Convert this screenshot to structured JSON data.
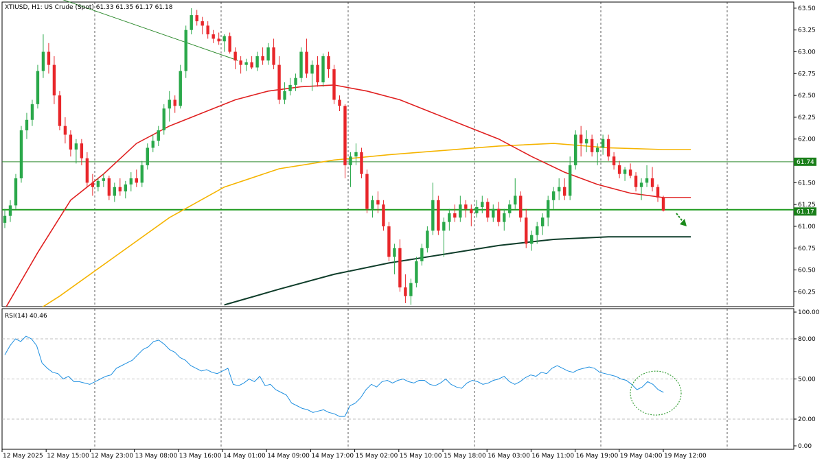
{
  "chart_data": [
    {
      "type": "candlestick",
      "title": "XTIUSD, H1:  US Crude (Spot)  61.33 61.35 61.17 61.18",
      "ylim": [
        60.08,
        63.57
      ],
      "y_ticks": [
        "63.50",
        "63.25",
        "63.00",
        "62.75",
        "62.50",
        "62.25",
        "62.00",
        "61.75",
        "61.50",
        "61.25",
        "61.00",
        "60.75",
        "60.50",
        "60.25"
      ],
      "x_ticks": [
        "12 May 2025",
        "12 May 15:00",
        "12 May 23:00",
        "13 May 08:00",
        "13 May 16:00",
        "14 May 01:00",
        "14 May 09:00",
        "14 May 17:00",
        "15 May 02:00",
        "15 May 10:00",
        "15 May 18:00",
        "16 May 03:00",
        "16 May 11:00",
        "16 May 19:00",
        "19 May 04:00",
        "19 May 12:00"
      ],
      "grid": true,
      "price_tags": [
        {
          "label": "61.74",
          "value": 61.74,
          "color": "#1a7f1a"
        },
        {
          "label": "61.17",
          "value": 61.17,
          "color": "#1a7f1a"
        }
      ],
      "levels": [
        {
          "value": 61.74,
          "color": "#2e8b2e",
          "width": 1
        },
        {
          "value": 61.19,
          "color": "#1e9a1e",
          "width": 2
        }
      ],
      "trendline": {
        "from": {
          "bar": -1,
          "price": 63.85
        },
        "to": {
          "bar": 42.5,
          "price": 62.9
        },
        "color": "#2e8b2e"
      },
      "target_box": {
        "bar_from": 159,
        "bar_to": 175,
        "price": 60.88,
        "color": "#2b3fd6"
      },
      "arrow": {
        "bar_from": 161,
        "price_from": 61.07,
        "bar_to": 164,
        "price_to": 60.95,
        "color": "#1a8a1a"
      },
      "candles": [
        [
          61.04,
          61.2,
          60.98,
          61.12
        ],
        [
          61.12,
          61.3,
          61.05,
          61.24
        ],
        [
          61.24,
          61.6,
          61.2,
          61.55
        ],
        [
          61.55,
          62.15,
          61.5,
          62.1
        ],
        [
          62.1,
          62.3,
          62.0,
          62.22
        ],
        [
          62.22,
          62.45,
          62.15,
          62.4
        ],
        [
          62.4,
          62.85,
          62.35,
          62.78
        ],
        [
          62.78,
          63.2,
          62.7,
          63.0
        ],
        [
          63.0,
          63.1,
          62.75,
          62.85
        ],
        [
          62.85,
          62.95,
          62.4,
          62.5
        ],
        [
          62.5,
          62.55,
          62.1,
          62.15
        ],
        [
          62.15,
          62.25,
          61.95,
          62.05
        ],
        [
          62.05,
          62.1,
          61.8,
          61.88
        ],
        [
          61.88,
          62.0,
          61.72,
          61.95
        ],
        [
          61.95,
          62.0,
          61.7,
          61.78
        ],
        [
          61.78,
          61.85,
          61.45,
          61.5
        ],
        [
          61.5,
          61.6,
          61.35,
          61.45
        ],
        [
          61.45,
          61.55,
          61.4,
          61.52
        ],
        [
          61.52,
          61.6,
          61.45,
          61.55
        ],
        [
          61.55,
          61.58,
          61.3,
          61.35
        ],
        [
          61.35,
          61.5,
          61.28,
          61.45
        ],
        [
          61.45,
          61.55,
          61.35,
          61.4
        ],
        [
          61.4,
          61.52,
          61.32,
          61.48
        ],
        [
          61.48,
          61.62,
          61.4,
          61.55
        ],
        [
          61.55,
          61.65,
          61.45,
          61.5
        ],
        [
          61.5,
          61.75,
          61.45,
          61.7
        ],
        [
          61.7,
          61.95,
          61.65,
          61.9
        ],
        [
          61.9,
          62.05,
          61.85,
          61.98
        ],
        [
          61.98,
          62.15,
          61.92,
          62.1
        ],
        [
          62.1,
          62.4,
          62.05,
          62.35
        ],
        [
          62.35,
          62.55,
          62.2,
          62.45
        ],
        [
          62.45,
          62.5,
          62.3,
          62.38
        ],
        [
          62.38,
          62.85,
          62.35,
          62.78
        ],
        [
          62.78,
          63.3,
          62.7,
          63.25
        ],
        [
          63.25,
          63.5,
          63.2,
          63.42
        ],
        [
          63.42,
          63.48,
          63.3,
          63.35
        ],
        [
          63.35,
          63.4,
          63.2,
          63.3
        ],
        [
          63.3,
          63.35,
          63.15,
          63.2
        ],
        [
          63.2,
          63.25,
          63.1,
          63.15
        ],
        [
          63.15,
          63.22,
          63.08,
          63.12
        ],
        [
          63.12,
          63.2,
          63.0,
          63.18
        ],
        [
          63.18,
          63.22,
          62.98,
          63.0
        ],
        [
          63.0,
          63.05,
          62.8,
          62.9
        ],
        [
          62.9,
          62.95,
          62.75,
          62.85
        ],
        [
          62.85,
          62.92,
          62.78,
          62.88
        ],
        [
          62.88,
          62.95,
          62.8,
          62.82
        ],
        [
          62.82,
          63.0,
          62.78,
          62.95
        ],
        [
          62.95,
          63.05,
          62.85,
          62.9
        ],
        [
          62.9,
          63.1,
          62.85,
          63.05
        ],
        [
          63.05,
          63.15,
          62.8,
          62.85
        ],
        [
          62.85,
          62.95,
          62.4,
          62.45
        ],
        [
          62.45,
          62.65,
          62.4,
          62.55
        ],
        [
          62.55,
          62.7,
          62.5,
          62.62
        ],
        [
          62.62,
          62.75,
          62.55,
          62.7
        ],
        [
          62.7,
          63.05,
          62.65,
          63.0
        ],
        [
          63.0,
          63.15,
          62.7,
          62.75
        ],
        [
          62.75,
          62.9,
          62.55,
          62.85
        ],
        [
          62.85,
          62.95,
          62.6,
          62.65
        ],
        [
          62.65,
          62.98,
          62.6,
          62.95
        ],
        [
          62.95,
          63.0,
          62.7,
          62.8
        ],
        [
          62.8,
          62.85,
          62.4,
          62.45
        ],
        [
          62.45,
          62.5,
          62.32,
          62.38
        ],
        [
          62.38,
          62.4,
          61.55,
          61.7
        ],
        [
          61.7,
          61.85,
          61.45,
          61.8
        ],
        [
          61.8,
          61.95,
          61.7,
          61.85
        ],
        [
          61.85,
          61.9,
          61.55,
          61.6
        ],
        [
          61.6,
          61.65,
          61.15,
          61.2
        ],
        [
          61.2,
          61.35,
          61.1,
          61.3
        ],
        [
          61.3,
          61.4,
          61.15,
          61.25
        ],
        [
          61.25,
          61.3,
          60.95,
          61.0
        ],
        [
          61.0,
          61.05,
          60.6,
          60.65
        ],
        [
          60.65,
          60.8,
          60.45,
          60.75
        ],
        [
          60.75,
          60.85,
          60.25,
          60.3
        ],
        [
          60.3,
          60.45,
          60.12,
          60.2
        ],
        [
          60.2,
          60.4,
          60.1,
          60.35
        ],
        [
          60.35,
          60.65,
          60.3,
          60.6
        ],
        [
          60.6,
          60.8,
          60.55,
          60.75
        ],
        [
          60.75,
          61.0,
          60.7,
          60.95
        ],
        [
          60.95,
          61.5,
          60.9,
          61.3
        ],
        [
          61.3,
          61.35,
          60.9,
          60.95
        ],
        [
          60.95,
          61.1,
          60.65,
          61.05
        ],
        [
          61.05,
          61.2,
          60.95,
          61.15
        ],
        [
          61.15,
          61.25,
          61.05,
          61.1
        ],
        [
          61.1,
          61.35,
          61.05,
          61.25
        ],
        [
          61.25,
          61.3,
          61.1,
          61.2
        ],
        [
          61.2,
          61.25,
          61.0,
          61.15
        ],
        [
          61.15,
          61.3,
          61.1,
          61.22
        ],
        [
          61.22,
          61.35,
          61.15,
          61.28
        ],
        [
          61.28,
          61.32,
          61.05,
          61.1
        ],
        [
          61.1,
          61.25,
          61.05,
          61.2
        ],
        [
          61.2,
          61.28,
          61.0,
          61.05
        ],
        [
          61.05,
          61.2,
          60.95,
          61.15
        ],
        [
          61.15,
          61.3,
          61.1,
          61.25
        ],
        [
          61.25,
          61.55,
          61.2,
          61.35
        ],
        [
          61.35,
          61.4,
          61.05,
          61.1
        ],
        [
          61.1,
          61.2,
          60.75,
          60.8
        ],
        [
          60.8,
          60.95,
          60.72,
          60.9
        ],
        [
          60.9,
          61.05,
          60.8,
          61.0
        ],
        [
          61.0,
          61.15,
          60.9,
          61.1
        ],
        [
          61.1,
          61.35,
          61.0,
          61.3
        ],
        [
          61.3,
          61.45,
          61.2,
          61.4
        ],
        [
          61.4,
          61.55,
          61.3,
          61.45
        ],
        [
          61.45,
          61.55,
          61.3,
          61.35
        ],
        [
          61.35,
          61.8,
          61.3,
          61.7
        ],
        [
          61.7,
          62.1,
          61.65,
          62.05
        ],
        [
          62.05,
          62.15,
          61.8,
          61.95
        ],
        [
          61.95,
          62.1,
          61.85,
          62.0
        ],
        [
          62.0,
          62.05,
          61.8,
          61.85
        ],
        [
          61.85,
          61.95,
          61.7,
          61.9
        ],
        [
          61.9,
          62.05,
          61.82,
          62.0
        ],
        [
          62.0,
          62.05,
          61.75,
          61.8
        ],
        [
          61.8,
          61.85,
          61.65,
          61.7
        ],
        [
          61.7,
          61.75,
          61.55,
          61.6
        ],
        [
          61.6,
          61.68,
          61.52,
          61.65
        ],
        [
          61.65,
          61.72,
          61.55,
          61.58
        ],
        [
          61.58,
          61.62,
          61.4,
          61.45
        ],
        [
          61.45,
          61.55,
          61.3,
          61.5
        ],
        [
          61.5,
          61.7,
          61.45,
          61.55
        ],
        [
          61.55,
          61.68,
          61.4,
          61.45
        ],
        [
          61.45,
          61.48,
          61.28,
          61.33
        ],
        [
          61.33,
          61.35,
          61.17,
          61.18
        ]
      ],
      "ma_red": [
        [
          0,
          60.05
        ],
        [
          6,
          60.7
        ],
        [
          12,
          61.3
        ],
        [
          18,
          61.6
        ],
        [
          24,
          61.95
        ],
        [
          30,
          62.15
        ],
        [
          36,
          62.3
        ],
        [
          42,
          62.45
        ],
        [
          48,
          62.55
        ],
        [
          54,
          62.6
        ],
        [
          60,
          62.62
        ],
        [
          66,
          62.55
        ],
        [
          72,
          62.45
        ],
        [
          78,
          62.3
        ],
        [
          84,
          62.15
        ],
        [
          90,
          62.0
        ],
        [
          96,
          61.8
        ],
        [
          102,
          61.62
        ],
        [
          108,
          61.48
        ],
        [
          114,
          61.38
        ],
        [
          120,
          61.33
        ],
        [
          125,
          61.33
        ]
      ],
      "ma_orange": [
        [
          0,
          59.8
        ],
        [
          10,
          60.2
        ],
        [
          20,
          60.65
        ],
        [
          30,
          61.1
        ],
        [
          40,
          61.45
        ],
        [
          50,
          61.66
        ],
        [
          60,
          61.76
        ],
        [
          70,
          61.82
        ],
        [
          80,
          61.87
        ],
        [
          90,
          61.92
        ],
        [
          100,
          61.95
        ],
        [
          110,
          61.9
        ],
        [
          120,
          61.88
        ],
        [
          125,
          61.88
        ]
      ],
      "ma_dark": [
        [
          40,
          60.1
        ],
        [
          50,
          60.28
        ],
        [
          60,
          60.45
        ],
        [
          70,
          60.58
        ],
        [
          80,
          60.68
        ],
        [
          90,
          60.78
        ],
        [
          100,
          60.85
        ],
        [
          110,
          60.88
        ],
        [
          120,
          60.88
        ],
        [
          125,
          60.88
        ]
      ]
    },
    {
      "type": "line",
      "title": "RSI(14) 40.46",
      "ylim": [
        0,
        100
      ],
      "y_ticks": [
        "100.00",
        "80.00",
        "50.00",
        "20.00",
        "0.00"
      ],
      "levels": [
        80,
        50,
        20
      ],
      "series": [
        {
          "values": [
            68,
            75,
            80,
            78,
            82,
            80,
            75,
            62,
            58,
            55,
            54,
            50,
            52,
            48,
            48,
            47,
            46,
            48,
            50,
            52,
            53,
            58,
            60,
            62,
            64,
            68,
            72,
            74,
            78,
            79,
            76,
            72,
            70,
            66,
            64,
            60,
            58,
            56,
            57,
            55,
            54,
            56,
            58,
            46,
            45,
            47,
            50,
            48,
            52,
            45,
            46,
            42,
            40,
            38,
            32,
            30,
            28,
            27,
            25,
            26,
            27,
            25,
            24,
            22,
            22,
            30,
            32,
            36,
            42,
            46,
            44,
            48,
            49,
            47,
            49,
            50,
            48,
            47,
            49,
            49,
            46,
            45,
            47,
            50,
            46,
            44,
            43,
            47,
            49,
            48,
            46,
            47,
            49,
            50,
            52,
            48,
            46,
            48,
            51,
            53,
            52,
            55,
            54,
            58,
            60,
            58,
            56,
            55,
            57,
            58,
            59,
            58,
            55,
            54,
            53,
            52,
            50,
            49,
            46,
            42,
            44,
            48,
            46,
            42,
            40
          ]
        }
      ],
      "annotation_circle": {
        "bar": 122,
        "value": 42
      }
    }
  ]
}
